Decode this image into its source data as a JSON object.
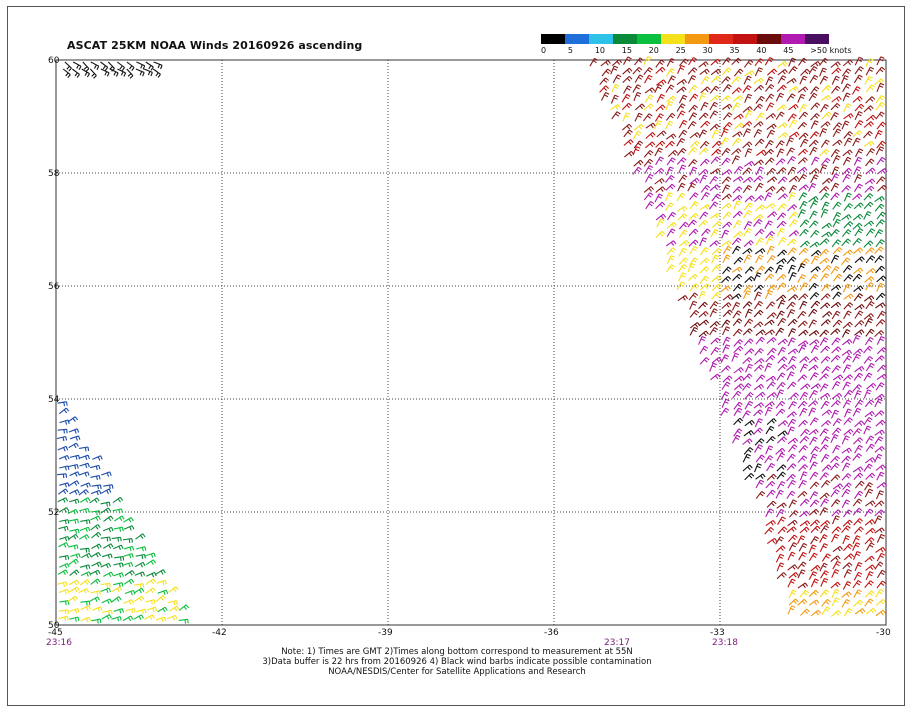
{
  "title": "ASCAT 25KM NOAA Winds 20160926 ascending",
  "legend": {
    "segments": [
      {
        "color": "#000000"
      },
      {
        "color": "#1e6fd9"
      },
      {
        "color": "#2ec2e8"
      },
      {
        "color": "#0b8a3a"
      },
      {
        "color": "#0bbf3f"
      },
      {
        "color": "#f5e11a"
      },
      {
        "color": "#f39a12"
      },
      {
        "color": "#e02818"
      },
      {
        "color": "#c21212"
      },
      {
        "color": "#6b0c0c"
      },
      {
        "color": "#b01ab0"
      },
      {
        "color": "#4a1060"
      }
    ],
    "ticks": [
      "0",
      "5",
      "10",
      "15",
      "20",
      "25",
      "30",
      "35",
      "40",
      "45",
      ">50 knots"
    ]
  },
  "axes": {
    "x_ticks": [
      "-45",
      "-42",
      "-39",
      "-36",
      "-33",
      "-30"
    ],
    "y_ticks": [
      "60",
      "58",
      "56",
      "54",
      "52",
      "50"
    ],
    "time_labels": [
      "23:16",
      "23:17",
      "23:18"
    ],
    "grid": "dotted"
  },
  "swaths": [
    {
      "name": "left-swath",
      "colors": [
        "#1a4aa8",
        "#0b8a3a",
        "#0bbf3f",
        "#f5e11a",
        "#111111"
      ]
    },
    {
      "name": "right-swath",
      "colors": [
        "#b01ab0",
        "#8b1a1a",
        "#c21212",
        "#f39a12",
        "#f5e11a",
        "#111111",
        "#0b8a3a",
        "#6b0c0c"
      ]
    },
    {
      "name": "top-left-patch",
      "colors": [
        "#111111"
      ]
    }
  ],
  "notes": [
    "Note: 1) Times are GMT 2)Times along bottom correspond to measurement at 55N",
    "3)Data buffer is 22 hrs from 20160926 4) Black wind barbs indicate possible contamination",
    "NOAA/NESDIS/Center for Satellite Applications and Research"
  ]
}
